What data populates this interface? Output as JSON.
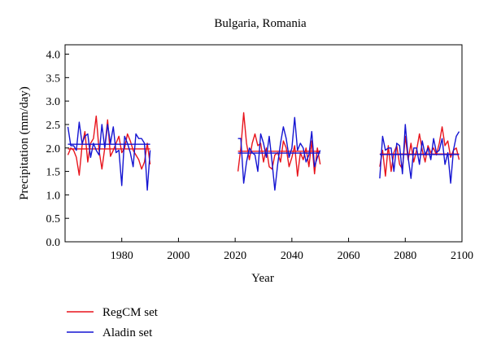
{
  "chart_data": {
    "type": "line",
    "title": "Bulgaria, Romania",
    "xlabel": "Year",
    "ylabel": "Precipitation (mm/day)",
    "xlim": [
      1960,
      2100
    ],
    "ylim": [
      0.0,
      4.2
    ],
    "xticks": [
      1980,
      2000,
      2020,
      2040,
      2060,
      2080,
      2100
    ],
    "yticks": [
      "0.0",
      "0.5",
      "1.0",
      "1.5",
      "2.0",
      "2.5",
      "3.0",
      "3.5",
      "4.0"
    ],
    "legend_position": "bottom-left",
    "series": [
      {
        "name": "RegCM set",
        "color": "#e8141c",
        "segments": [
          {
            "x": [
              1961,
              1962,
              1963,
              1964,
              1965,
              1966,
              1967,
              1968,
              1969,
              1970,
              1971,
              1972,
              1973,
              1974,
              1975,
              1976,
              1977,
              1978,
              1979,
              1980,
              1981,
              1982,
              1983,
              1984,
              1985,
              1986,
              1987,
              1988,
              1989,
              1990
            ],
            "y": [
              1.85,
              2.0,
              1.95,
              1.8,
              1.42,
              2.05,
              2.35,
              1.7,
              2.1,
              2.2,
              2.68,
              1.95,
              1.55,
              2.0,
              2.6,
              1.82,
              1.95,
              2.1,
              2.25,
              1.9,
              2.0,
              2.3,
              2.15,
              1.95,
              1.85,
              1.75,
              1.55,
              1.7,
              2.1,
              1.65
            ]
          },
          {
            "x": [
              2021,
              2022,
              2023,
              2024,
              2025,
              2026,
              2027,
              2028,
              2029,
              2030,
              2031,
              2032,
              2033,
              2034,
              2035,
              2036,
              2037,
              2038,
              2039,
              2040,
              2041,
              2042,
              2043,
              2044,
              2045,
              2046,
              2047,
              2048,
              2049,
              2050
            ],
            "y": [
              1.5,
              2.0,
              2.75,
              2.1,
              1.75,
              2.1,
              2.3,
              2.05,
              2.1,
              1.7,
              2.0,
              1.6,
              1.55,
              1.85,
              1.9,
              1.7,
              2.15,
              2.0,
              1.6,
              1.8,
              2.05,
              1.4,
              1.9,
              1.75,
              2.0,
              1.6,
              2.15,
              1.45,
              2.0,
              1.65
            ]
          },
          {
            "x": [
              2071,
              2072,
              2073,
              2074,
              2075,
              2076,
              2077,
              2078,
              2079,
              2080,
              2081,
              2082,
              2083,
              2084,
              2085,
              2086,
              2087,
              2088,
              2089,
              2090,
              2091,
              2092,
              2093,
              2094,
              2095,
              2096,
              2097,
              2098,
              2099
            ],
            "y": [
              1.6,
              1.95,
              1.4,
              2.05,
              1.5,
              1.9,
              2.05,
              1.65,
              1.55,
              2.25,
              1.75,
              2.1,
              1.7,
              1.95,
              2.3,
              1.95,
              1.7,
              2.05,
              1.9,
              2.0,
              1.85,
              2.1,
              2.45,
              2.05,
              2.15,
              1.8,
              1.95,
              2.0,
              1.75
            ]
          }
        ],
        "means": [
          {
            "x": [
              1961,
              1990
            ],
            "y": 1.98
          },
          {
            "x": [
              2021,
              2050
            ],
            "y": 1.93
          },
          {
            "x": [
              2071,
              2099
            ],
            "y": 1.87
          }
        ]
      },
      {
        "name": "Aladin set",
        "color": "#1414d2",
        "segments": [
          {
            "x": [
              1961,
              1962,
              1963,
              1964,
              1965,
              1966,
              1967,
              1968,
              1969,
              1970,
              1971,
              1972,
              1973,
              1974,
              1975,
              1976,
              1977,
              1978,
              1979,
              1980,
              1981,
              1982,
              1983,
              1984,
              1985,
              1986,
              1987,
              1988,
              1989,
              1990
            ],
            "y": [
              2.45,
              2.05,
              2.05,
              1.95,
              2.55,
              2.1,
              2.25,
              2.3,
              1.8,
              2.1,
              1.95,
              1.85,
              2.5,
              2.0,
              2.5,
              2.1,
              2.45,
              1.9,
              1.95,
              1.2,
              2.25,
              2.1,
              1.9,
              1.6,
              2.3,
              2.2,
              2.2,
              2.1,
              1.1,
              1.95
            ]
          },
          {
            "x": [
              2021,
              2022,
              2023,
              2024,
              2025,
              2026,
              2027,
              2028,
              2029,
              2030,
              2031,
              2032,
              2033,
              2034,
              2035,
              2036,
              2037,
              2038,
              2039,
              2040,
              2041,
              2042,
              2043,
              2044,
              2045,
              2046,
              2047,
              2048,
              2049,
              2050
            ],
            "y": [
              2.2,
              2.2,
              1.25,
              1.7,
              2.0,
              1.9,
              1.85,
              1.5,
              2.3,
              2.1,
              1.8,
              2.25,
              1.7,
              1.1,
              1.65,
              2.1,
              2.45,
              2.2,
              1.8,
              2.0,
              2.65,
              1.95,
              2.1,
              2.0,
              1.7,
              1.85,
              2.35,
              1.6,
              1.8,
              1.95
            ]
          },
          {
            "x": [
              2071,
              2072,
              2073,
              2074,
              2075,
              2076,
              2077,
              2078,
              2079,
              2080,
              2081,
              2082,
              2083,
              2084,
              2085,
              2086,
              2087,
              2088,
              2089,
              2090,
              2091,
              2092,
              2093,
              2094,
              2095,
              2096,
              2097,
              2098,
              2099
            ],
            "y": [
              1.35,
              2.25,
              1.95,
              2.0,
              2.0,
              1.5,
              2.1,
              2.05,
              1.45,
              2.5,
              1.8,
              1.35,
              2.0,
              2.0,
              1.65,
              2.15,
              1.85,
              2.0,
              1.75,
              2.2,
              1.9,
              1.95,
              2.2,
              1.65,
              1.9,
              1.25,
              1.95,
              2.25,
              2.35
            ]
          }
        ],
        "means": [
          {
            "x": [
              1961,
              1990
            ],
            "y": 2.08
          },
          {
            "x": [
              2021,
              2050
            ],
            "y": 1.89
          },
          {
            "x": [
              2071,
              2099
            ],
            "y": 1.86
          }
        ]
      }
    ]
  }
}
